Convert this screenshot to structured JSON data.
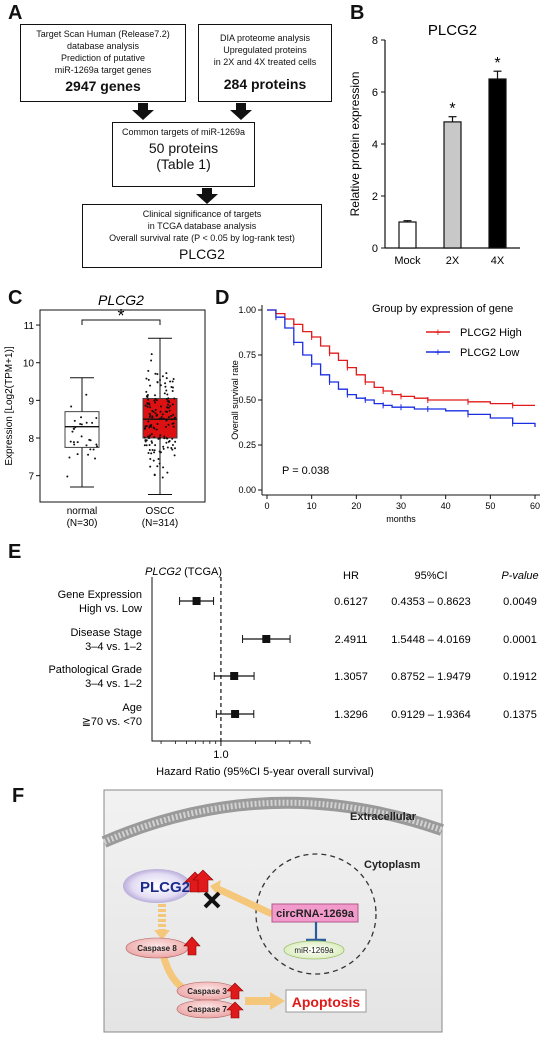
{
  "panelA": {
    "letter": "A",
    "box1": {
      "line1": "Target Scan Human (Release7.2)",
      "line2": "database analysis",
      "line3": "Prediction of putative",
      "line4": "miR-1269a target genes",
      "count": "2947 genes"
    },
    "box2": {
      "line1": "DIA proteome analysis",
      "line2": "Upregulated proteins",
      "line3": "in 2X and 4X treated cells",
      "count": "284 proteins"
    },
    "box3": {
      "line1": "Common targets of miR-1269a",
      "line2": "50 proteins",
      "line3": "(Table 1)"
    },
    "box4": {
      "line1": "Clinical significance of targets",
      "line2": "in TCGA database analysis",
      "line3": "Overall survival rate (P < 0.05 by log-rank test)",
      "result": "PLCG2"
    }
  },
  "panelB": {
    "letter": "B",
    "chart_data": {
      "type": "bar",
      "title": "PLCG2",
      "ylabel": "Relative protein expression",
      "categories": [
        "Mock",
        "2X",
        "4X"
      ],
      "values": [
        1.0,
        4.85,
        6.5
      ],
      "errors": [
        0.05,
        0.2,
        0.3
      ],
      "significance": [
        "",
        "*",
        "*"
      ],
      "colors": [
        "#ffffff",
        "#c8c8c8",
        "#000000"
      ],
      "ylim": [
        0,
        8
      ],
      "yticks": [
        0,
        2,
        4,
        6,
        8
      ]
    }
  },
  "panelC": {
    "letter": "C",
    "chart_data": {
      "type": "box",
      "title": "PLCG2",
      "ylabel": "Expression [Log2(TPM+1)]",
      "ylim": [
        6.3,
        11.4
      ],
      "yticks": [
        7,
        8,
        9,
        10,
        11
      ],
      "significance": "*",
      "groups": [
        {
          "name": "normal",
          "n": "(N=30)",
          "min": 6.7,
          "q1": 7.75,
          "median": 8.3,
          "q3": 8.7,
          "max": 9.6,
          "color": "#ffffff"
        },
        {
          "name": "OSCC",
          "n": "(N=314)",
          "min": 6.5,
          "q1": 8.0,
          "median": 8.5,
          "q3": 9.05,
          "max": 10.65,
          "color": "#dd1111"
        }
      ]
    }
  },
  "panelD": {
    "letter": "D",
    "chart_data": {
      "type": "line",
      "xlabel": "months",
      "ylabel": "Overall survival rate",
      "xlim": [
        0,
        60
      ],
      "ylim": [
        0,
        1
      ],
      "xticks": [
        0,
        10,
        20,
        30,
        40,
        50,
        60
      ],
      "yticks": [
        "0.00",
        "0.25",
        "0.50",
        "0.75",
        "1.00"
      ],
      "legend_title": "Group by expression of gene",
      "annotation": "P = 0.038",
      "series": [
        {
          "name": "PLCG2 High",
          "color": "#e21a1a",
          "x": [
            0,
            2,
            4,
            6,
            8,
            10,
            12,
            14,
            16,
            18,
            20,
            22,
            24,
            26,
            28,
            30,
            33,
            36,
            40,
            45,
            50,
            55,
            60
          ],
          "y": [
            1.0,
            0.98,
            0.95,
            0.92,
            0.88,
            0.85,
            0.8,
            0.76,
            0.72,
            0.68,
            0.64,
            0.6,
            0.57,
            0.55,
            0.53,
            0.52,
            0.51,
            0.5,
            0.5,
            0.49,
            0.48,
            0.47,
            0.47
          ]
        },
        {
          "name": "PLCG2 Low",
          "color": "#1a2ee2",
          "x": [
            0,
            2,
            4,
            6,
            8,
            10,
            12,
            14,
            16,
            18,
            20,
            22,
            24,
            26,
            28,
            30,
            33,
            36,
            40,
            45,
            50,
            55,
            60
          ],
          "y": [
            1.0,
            0.96,
            0.9,
            0.82,
            0.75,
            0.7,
            0.64,
            0.6,
            0.56,
            0.53,
            0.51,
            0.5,
            0.48,
            0.47,
            0.46,
            0.46,
            0.45,
            0.45,
            0.44,
            0.42,
            0.4,
            0.37,
            0.35
          ]
        }
      ]
    }
  },
  "panelE": {
    "letter": "E",
    "header_gene": "PLCG2",
    "header_source": " (TCGA)",
    "col_hr": "HR",
    "col_ci": "95%CI",
    "col_p": "P-value",
    "xlabel": "Hazard Ratio (95%CI 5-year overall survival)",
    "ref_label": "1.0",
    "chart_data": {
      "type": "forest",
      "ref": 1.0,
      "rows": [
        {
          "label1": "Gene Expression",
          "label2": "High vs. Low",
          "hr": 0.6127,
          "lo": 0.4353,
          "hi": 0.8623,
          "hr_text": "0.6127",
          "ci_text": "0.4353 – 0.8623",
          "p_text": "0.0049"
        },
        {
          "label1": "Disease Stage",
          "label2": "3–4 vs. 1–2",
          "hr": 2.4911,
          "lo": 1.5448,
          "hi": 4.0169,
          "hr_text": "2.4911",
          "ci_text": "1.5448 – 4.0169",
          "p_text": "0.0001"
        },
        {
          "label1": "Pathological Grade",
          "label2": "3–4 vs. 1–2",
          "hr": 1.3057,
          "lo": 0.8752,
          "hi": 1.9479,
          "hr_text": "1.3057",
          "ci_text": "0.8752 – 1.9479",
          "p_text": "0.1912"
        },
        {
          "label1": "Age",
          "label2": "≧70 vs. <70",
          "hr": 1.3296,
          "lo": 0.9129,
          "hi": 1.9364,
          "hr_text": "1.3296",
          "ci_text": "0.9129 – 1.9364",
          "p_text": "0.1375"
        }
      ]
    }
  },
  "panelF": {
    "letter": "F",
    "extracellular": "Extracellular",
    "cytoplasm": "Cytoplasm",
    "plcg2": "PLCG2",
    "circrna": "circRNA-1269a",
    "mirna": "miR-1269a",
    "caspase8": "Caspase 8",
    "caspase3": "Caspase 3",
    "caspase7": "Caspase 7",
    "apoptosis": "Apoptosis"
  }
}
